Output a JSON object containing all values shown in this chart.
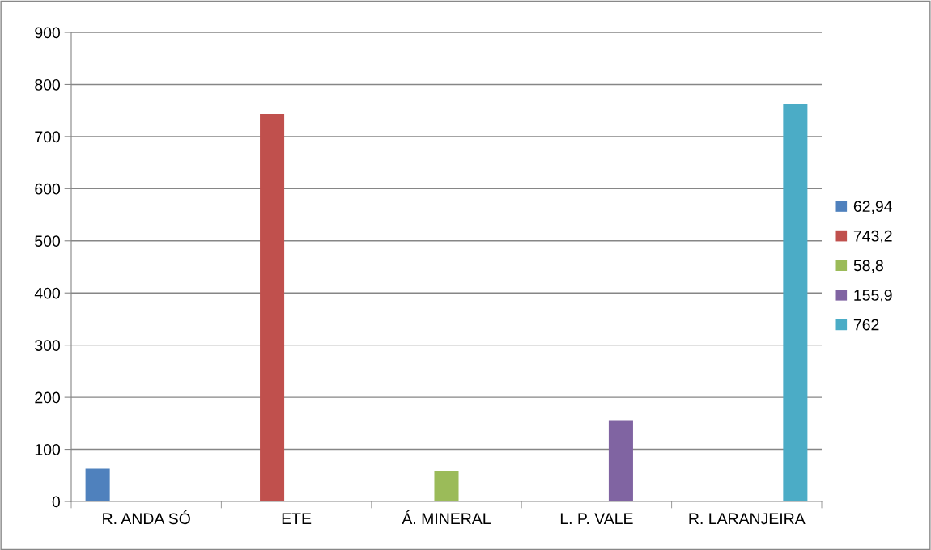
{
  "chart_data": {
    "type": "bar",
    "categories": [
      "R. ANDA SÓ",
      "ETE",
      "Á. MINERAL",
      "L. P. VALE",
      "R. LARANJEIRA"
    ],
    "series": [
      {
        "name": "62,94",
        "color": "#4f81bd",
        "values": [
          62.94,
          null,
          null,
          null,
          null
        ]
      },
      {
        "name": "743,2",
        "color": "#c0504d",
        "values": [
          null,
          743.2,
          null,
          null,
          null
        ]
      },
      {
        "name": "58,8",
        "color": "#9bbb59",
        "values": [
          null,
          null,
          58.8,
          null,
          null
        ]
      },
      {
        "name": "155,9",
        "color": "#8064a2",
        "values": [
          null,
          null,
          null,
          155.9,
          null
        ]
      },
      {
        "name": "762",
        "color": "#4bacc6",
        "values": [
          null,
          null,
          null,
          null,
          762
        ]
      }
    ],
    "ylim": [
      0,
      900
    ],
    "yticks": [
      0,
      100,
      200,
      300,
      400,
      500,
      600,
      700,
      800,
      900
    ],
    "grid": "y",
    "legend": "right"
  }
}
